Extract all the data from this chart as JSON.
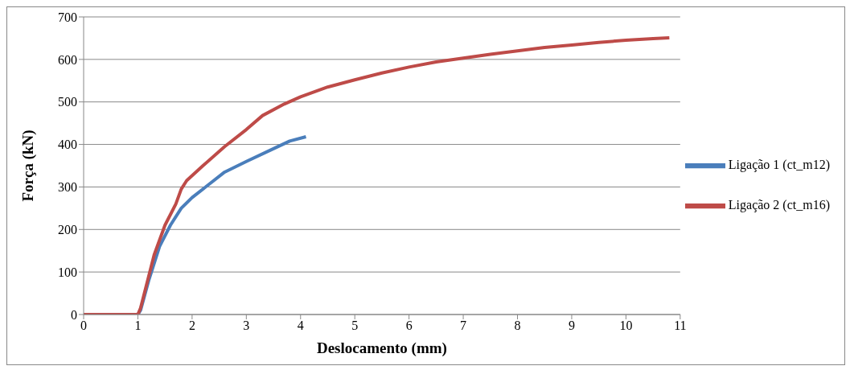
{
  "chart_data": {
    "type": "line",
    "xlabel": "Deslocamento (mm)",
    "ylabel": "Força (kN)",
    "xlim": [
      0,
      11
    ],
    "xticks": [
      0,
      1,
      2,
      3,
      4,
      5,
      6,
      7,
      8,
      9,
      10,
      11
    ],
    "ylim": [
      0,
      700
    ],
    "yticks": [
      0,
      100,
      200,
      300,
      400,
      500,
      600,
      700
    ],
    "grid": "y",
    "legend": "right",
    "marker": "none",
    "series": [
      {
        "name": "Ligação 1 (ct_m12)",
        "color": "#4a7ebb",
        "x": [
          0,
          1,
          1.05,
          1.2,
          1.4,
          1.6,
          1.8,
          2,
          2.3,
          2.6,
          3,
          3.5,
          3.8,
          4.1
        ],
        "values": [
          0,
          0,
          10,
          80,
          160,
          210,
          250,
          275,
          305,
          335,
          360,
          390,
          408,
          418
        ]
      },
      {
        "name": "Ligação 2 (ct_m16)",
        "color": "#be4b48",
        "x": [
          0,
          1,
          1.05,
          1.2,
          1.3,
          1.5,
          1.7,
          1.8,
          1.9,
          2.2,
          2.6,
          3,
          3.3,
          3.7,
          4,
          4.5,
          5,
          5.5,
          6,
          6.5,
          7,
          7.5,
          8,
          8.5,
          9,
          9.5,
          10,
          10.5,
          10.8
        ],
        "values": [
          0,
          0,
          15,
          90,
          140,
          210,
          260,
          295,
          315,
          350,
          395,
          435,
          468,
          495,
          512,
          535,
          552,
          568,
          582,
          594,
          603,
          612,
          620,
          628,
          634,
          640,
          645,
          649,
          651
        ]
      }
    ]
  }
}
